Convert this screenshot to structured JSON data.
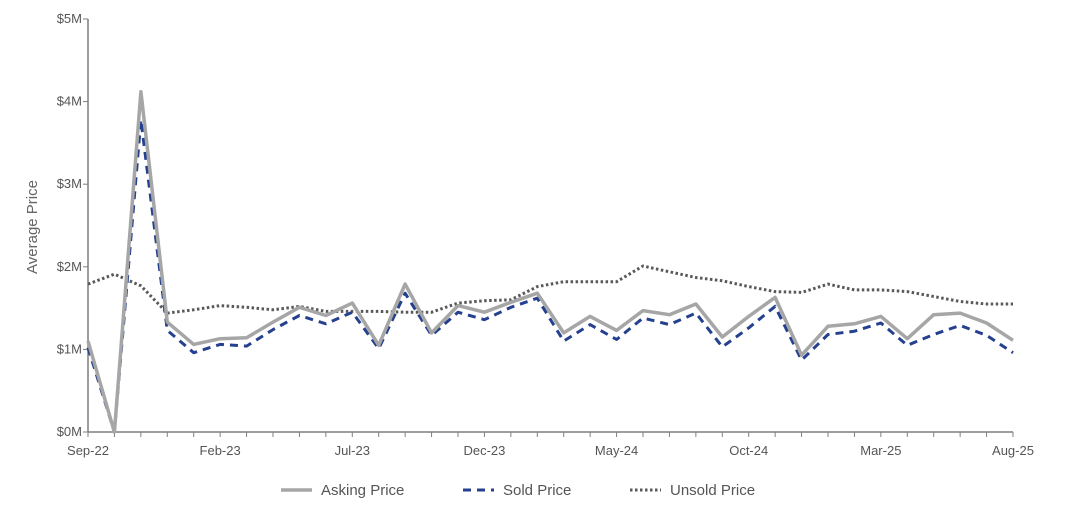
{
  "chart_data": {
    "type": "line",
    "ylabel": "Average Price",
    "xlabel": "",
    "ylim": [
      0,
      5000000
    ],
    "y_ticks": [
      {
        "value": 0,
        "label": "$0M"
      },
      {
        "value": 1000000,
        "label": "$1M"
      },
      {
        "value": 2000000,
        "label": "$2M"
      },
      {
        "value": 3000000,
        "label": "$3M"
      },
      {
        "value": 4000000,
        "label": "$4M"
      },
      {
        "value": 5000000,
        "label": "$5M"
      }
    ],
    "x": [
      "Sep-22",
      "Oct-22",
      "Nov-22",
      "Dec-22",
      "Jan-23",
      "Feb-23",
      "Mar-23",
      "Apr-23",
      "May-23",
      "Jun-23",
      "Jul-23",
      "Aug-23",
      "Sep-23",
      "Oct-23",
      "Nov-23",
      "Dec-23",
      "Jan-24",
      "Feb-24",
      "Mar-24",
      "Apr-24",
      "May-24",
      "Jun-24",
      "Jul-24",
      "Aug-24",
      "Sep-24",
      "Oct-24",
      "Nov-24",
      "Dec-24",
      "Jan-25",
      "Feb-25",
      "Mar-25",
      "Apr-25",
      "May-25",
      "Jun-25",
      "Jul-25",
      "Aug-25"
    ],
    "x_tick_labels": [
      "Sep-22",
      "Feb-23",
      "Jul-23",
      "Dec-23",
      "May-24",
      "Oct-24",
      "Mar-25",
      "Aug-25"
    ],
    "grid": false,
    "legend_position": "bottom",
    "series": [
      {
        "name": "Asking Price",
        "style": "solid",
        "color": "#a6a6a6",
        "values": [
          1100000,
          0,
          4120000,
          1330000,
          1060000,
          1130000,
          1140000,
          1330000,
          1510000,
          1410000,
          1560000,
          1050000,
          1790000,
          1200000,
          1530000,
          1450000,
          1570000,
          1680000,
          1200000,
          1400000,
          1230000,
          1470000,
          1420000,
          1550000,
          1150000,
          1400000,
          1630000,
          930000,
          1280000,
          1310000,
          1400000,
          1130000,
          1420000,
          1440000,
          1320000,
          1110000
        ]
      },
      {
        "name": "Sold Price",
        "style": "dashed",
        "color": "#24408e",
        "values": [
          1020000,
          0,
          3780000,
          1230000,
          960000,
          1060000,
          1040000,
          1240000,
          1410000,
          1310000,
          1450000,
          1010000,
          1680000,
          1170000,
          1450000,
          1360000,
          1510000,
          1620000,
          1100000,
          1300000,
          1120000,
          1380000,
          1300000,
          1440000,
          1030000,
          1260000,
          1520000,
          870000,
          1180000,
          1220000,
          1320000,
          1050000,
          1180000,
          1290000,
          1170000,
          960000
        ]
      },
      {
        "name": "Unsold Price",
        "style": "dotted",
        "color": "#595959",
        "values": [
          1790000,
          1910000,
          1770000,
          1440000,
          1480000,
          1530000,
          1510000,
          1480000,
          1520000,
          1460000,
          1460000,
          1460000,
          1450000,
          1450000,
          1560000,
          1590000,
          1600000,
          1760000,
          1820000,
          1820000,
          1820000,
          2010000,
          1940000,
          1870000,
          1830000,
          1760000,
          1700000,
          1690000,
          1790000,
          1720000,
          1720000,
          1700000,
          1640000,
          1580000,
          1550000,
          1550000
        ]
      }
    ]
  }
}
